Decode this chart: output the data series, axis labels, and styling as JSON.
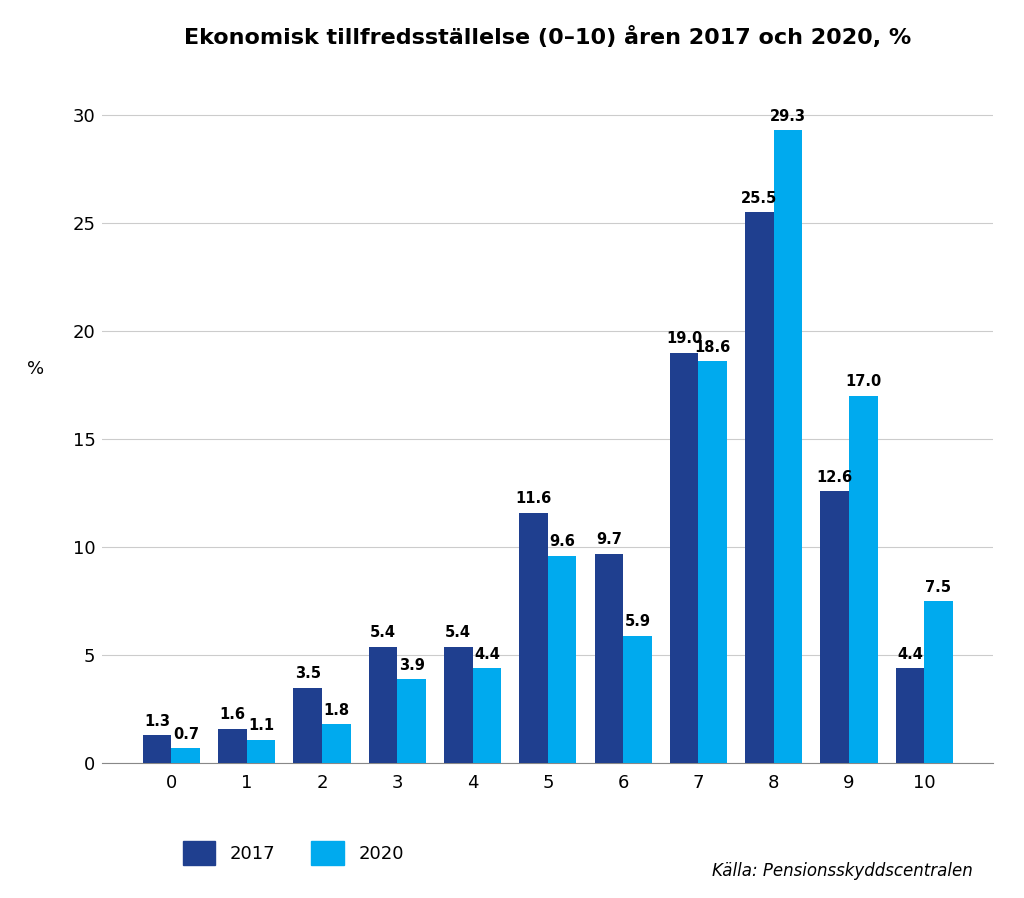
{
  "title": "Ekonomisk tillfredsställelse (0–10) åren 2017 och 2020, %",
  "categories": [
    0,
    1,
    2,
    3,
    4,
    5,
    6,
    7,
    8,
    9,
    10
  ],
  "values_2017": [
    1.3,
    1.6,
    3.5,
    5.4,
    5.4,
    11.6,
    9.7,
    19.0,
    25.5,
    12.6,
    4.4
  ],
  "values_2020": [
    0.7,
    1.1,
    1.8,
    3.9,
    4.4,
    9.6,
    5.9,
    18.6,
    29.3,
    17.0,
    7.5
  ],
  "color_2017": "#1F3F8F",
  "color_2020": "#00AAEE",
  "ylim": [
    0,
    32
  ],
  "yticks": [
    0,
    5,
    10,
    15,
    20,
    25,
    30
  ],
  "source": "Källa: Pensionsskyddscentralen",
  "legend_2017": "2017",
  "legend_2020": "2020",
  "bar_width": 0.38,
  "title_fontsize": 16,
  "tick_fontsize": 13,
  "label_fontsize": 10.5,
  "legend_fontsize": 13,
  "source_fontsize": 12,
  "background_color": "#FFFFFF"
}
